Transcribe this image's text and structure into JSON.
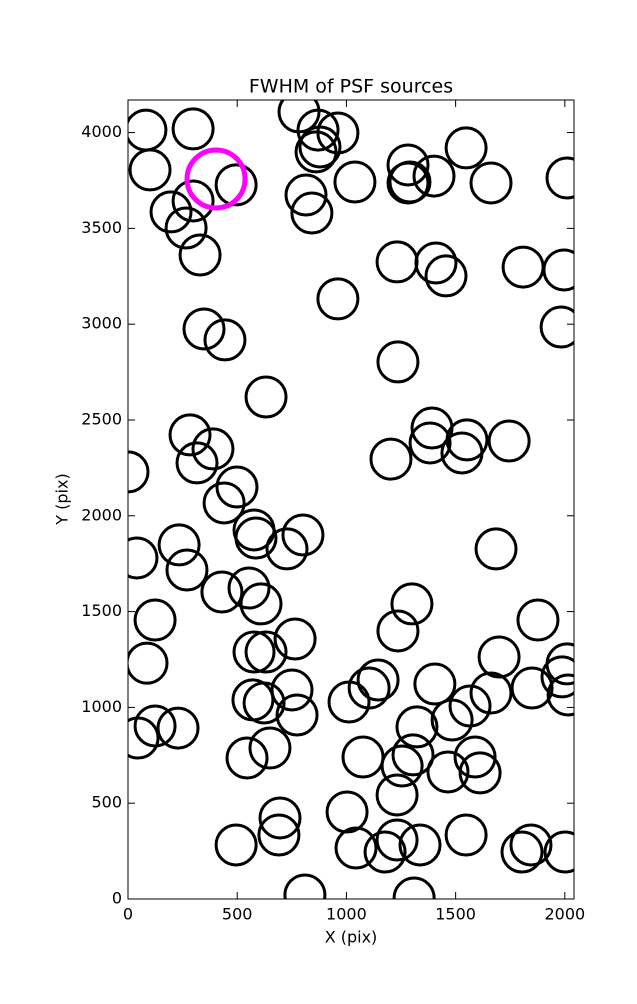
{
  "chart_data": {
    "type": "scatter",
    "title": "FWHM of PSF sources",
    "x_label": "X (pix)",
    "y_label": "Y (pix)",
    "xlim": [
      0,
      2042
    ],
    "ylim": [
      0,
      4170
    ],
    "xticks": [
      0,
      500,
      1000,
      1500,
      2000
    ],
    "yticks": [
      0,
      500,
      1000,
      1500,
      2000,
      2500,
      3000,
      3500,
      4000
    ],
    "series": [
      {
        "color": "#000000",
        "x": [
          82,
          298,
          101,
          298,
          197,
          266,
          330,
          495,
          783,
          870,
          879,
          961,
          861,
          815,
          842,
          1039,
          1282,
          1291,
          1282,
          1401,
          1548,
          1662,
          2010,
          1232,
          1410,
          1456,
          1809,
          1996,
          961,
          1983,
          348,
          444,
          1236,
          632,
          284,
          389,
          316,
          1204,
          1383,
          1392,
          1552,
          1529,
          1745,
          0,
          499,
          440,
          577,
          586,
          801,
          728,
          41,
          234,
          270,
          1685,
          430,
          554,
          609,
          124,
          1300,
          1236,
          1877,
          765,
          577,
          632,
          87,
          1699,
          2010,
          1987,
          2015,
          1145,
          1104,
          1405,
          1662,
          1850,
          1566,
          751,
          572,
          623,
          774,
          1012,
          1323,
          1484,
          124,
          229,
          46,
          545,
          650,
          1076,
          1255,
          1305,
          1465,
          1589,
          1612,
          1232,
          696,
          691,
          1003,
          495,
          1044,
          1177,
          1232,
          1337,
          1548,
          1845,
          1804,
          2001,
          810,
          1310
        ],
        "y": [
          4013,
          4019,
          3805,
          3643,
          3586,
          3502,
          3361,
          3727,
          4108,
          4013,
          3925,
          3998,
          3899,
          3674,
          3580,
          3742,
          3831,
          3742,
          3737,
          3773,
          3920,
          3737,
          3763,
          3325,
          3319,
          3252,
          3298,
          3283,
          3132,
          2985,
          2975,
          2918,
          2803,
          2620,
          2422,
          2349,
          2276,
          2296,
          2380,
          2458,
          2396,
          2328,
          2390,
          2229,
          2150,
          2067,
          1926,
          1884,
          1900,
          1827,
          1780,
          1848,
          1717,
          1827,
          1602,
          1623,
          1540,
          1456,
          1540,
          1399,
          1456,
          1357,
          1289,
          1289,
          1231,
          1263,
          1227,
          1159,
          1065,
          1143,
          1101,
          1122,
          1075,
          1101,
          1007,
          1091,
          1039,
          1023,
          960,
          1028,
          898,
          934,
          903,
          892,
          840,
          736,
          788,
          741,
          694,
          752,
          663,
          741,
          658,
          543,
          423,
          334,
          454,
          282,
          266,
          245,
          308,
          282,
          334,
          282,
          245,
          245,
          21,
          5
        ]
      },
      {
        "color": "#ff00ff",
        "x": [
          403
        ],
        "y": [
          3758
        ]
      }
    ]
  }
}
